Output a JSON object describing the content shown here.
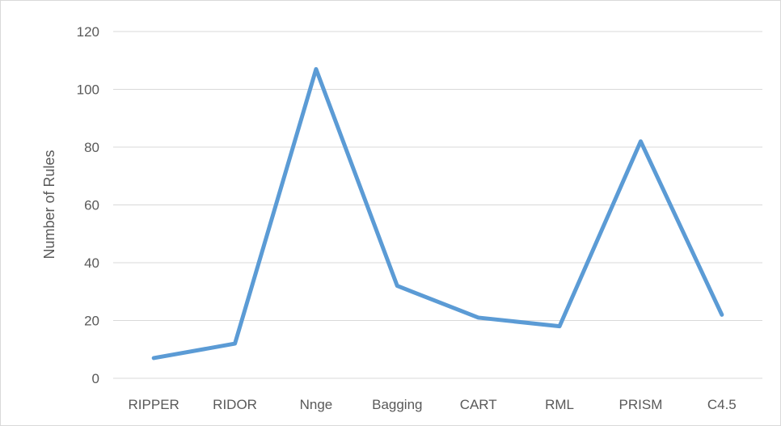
{
  "chart_data": {
    "type": "line",
    "categories": [
      "RIPPER",
      "RIDOR",
      "Nnge",
      "Bagging",
      "CART",
      "RML",
      "PRISM",
      "C4.5"
    ],
    "series": [
      {
        "values": [
          7,
          12,
          107,
          32,
          21,
          18,
          82,
          22
        ],
        "color": "#5b9bd5"
      }
    ],
    "title": "",
    "xlabel": "",
    "ylabel": "Number of Rules",
    "ylim": [
      0,
      120
    ],
    "yticks": [
      0,
      20,
      40,
      60,
      80,
      100,
      120
    ],
    "grid": true,
    "gridColor": "#d9d9d9",
    "legend": "none"
  }
}
